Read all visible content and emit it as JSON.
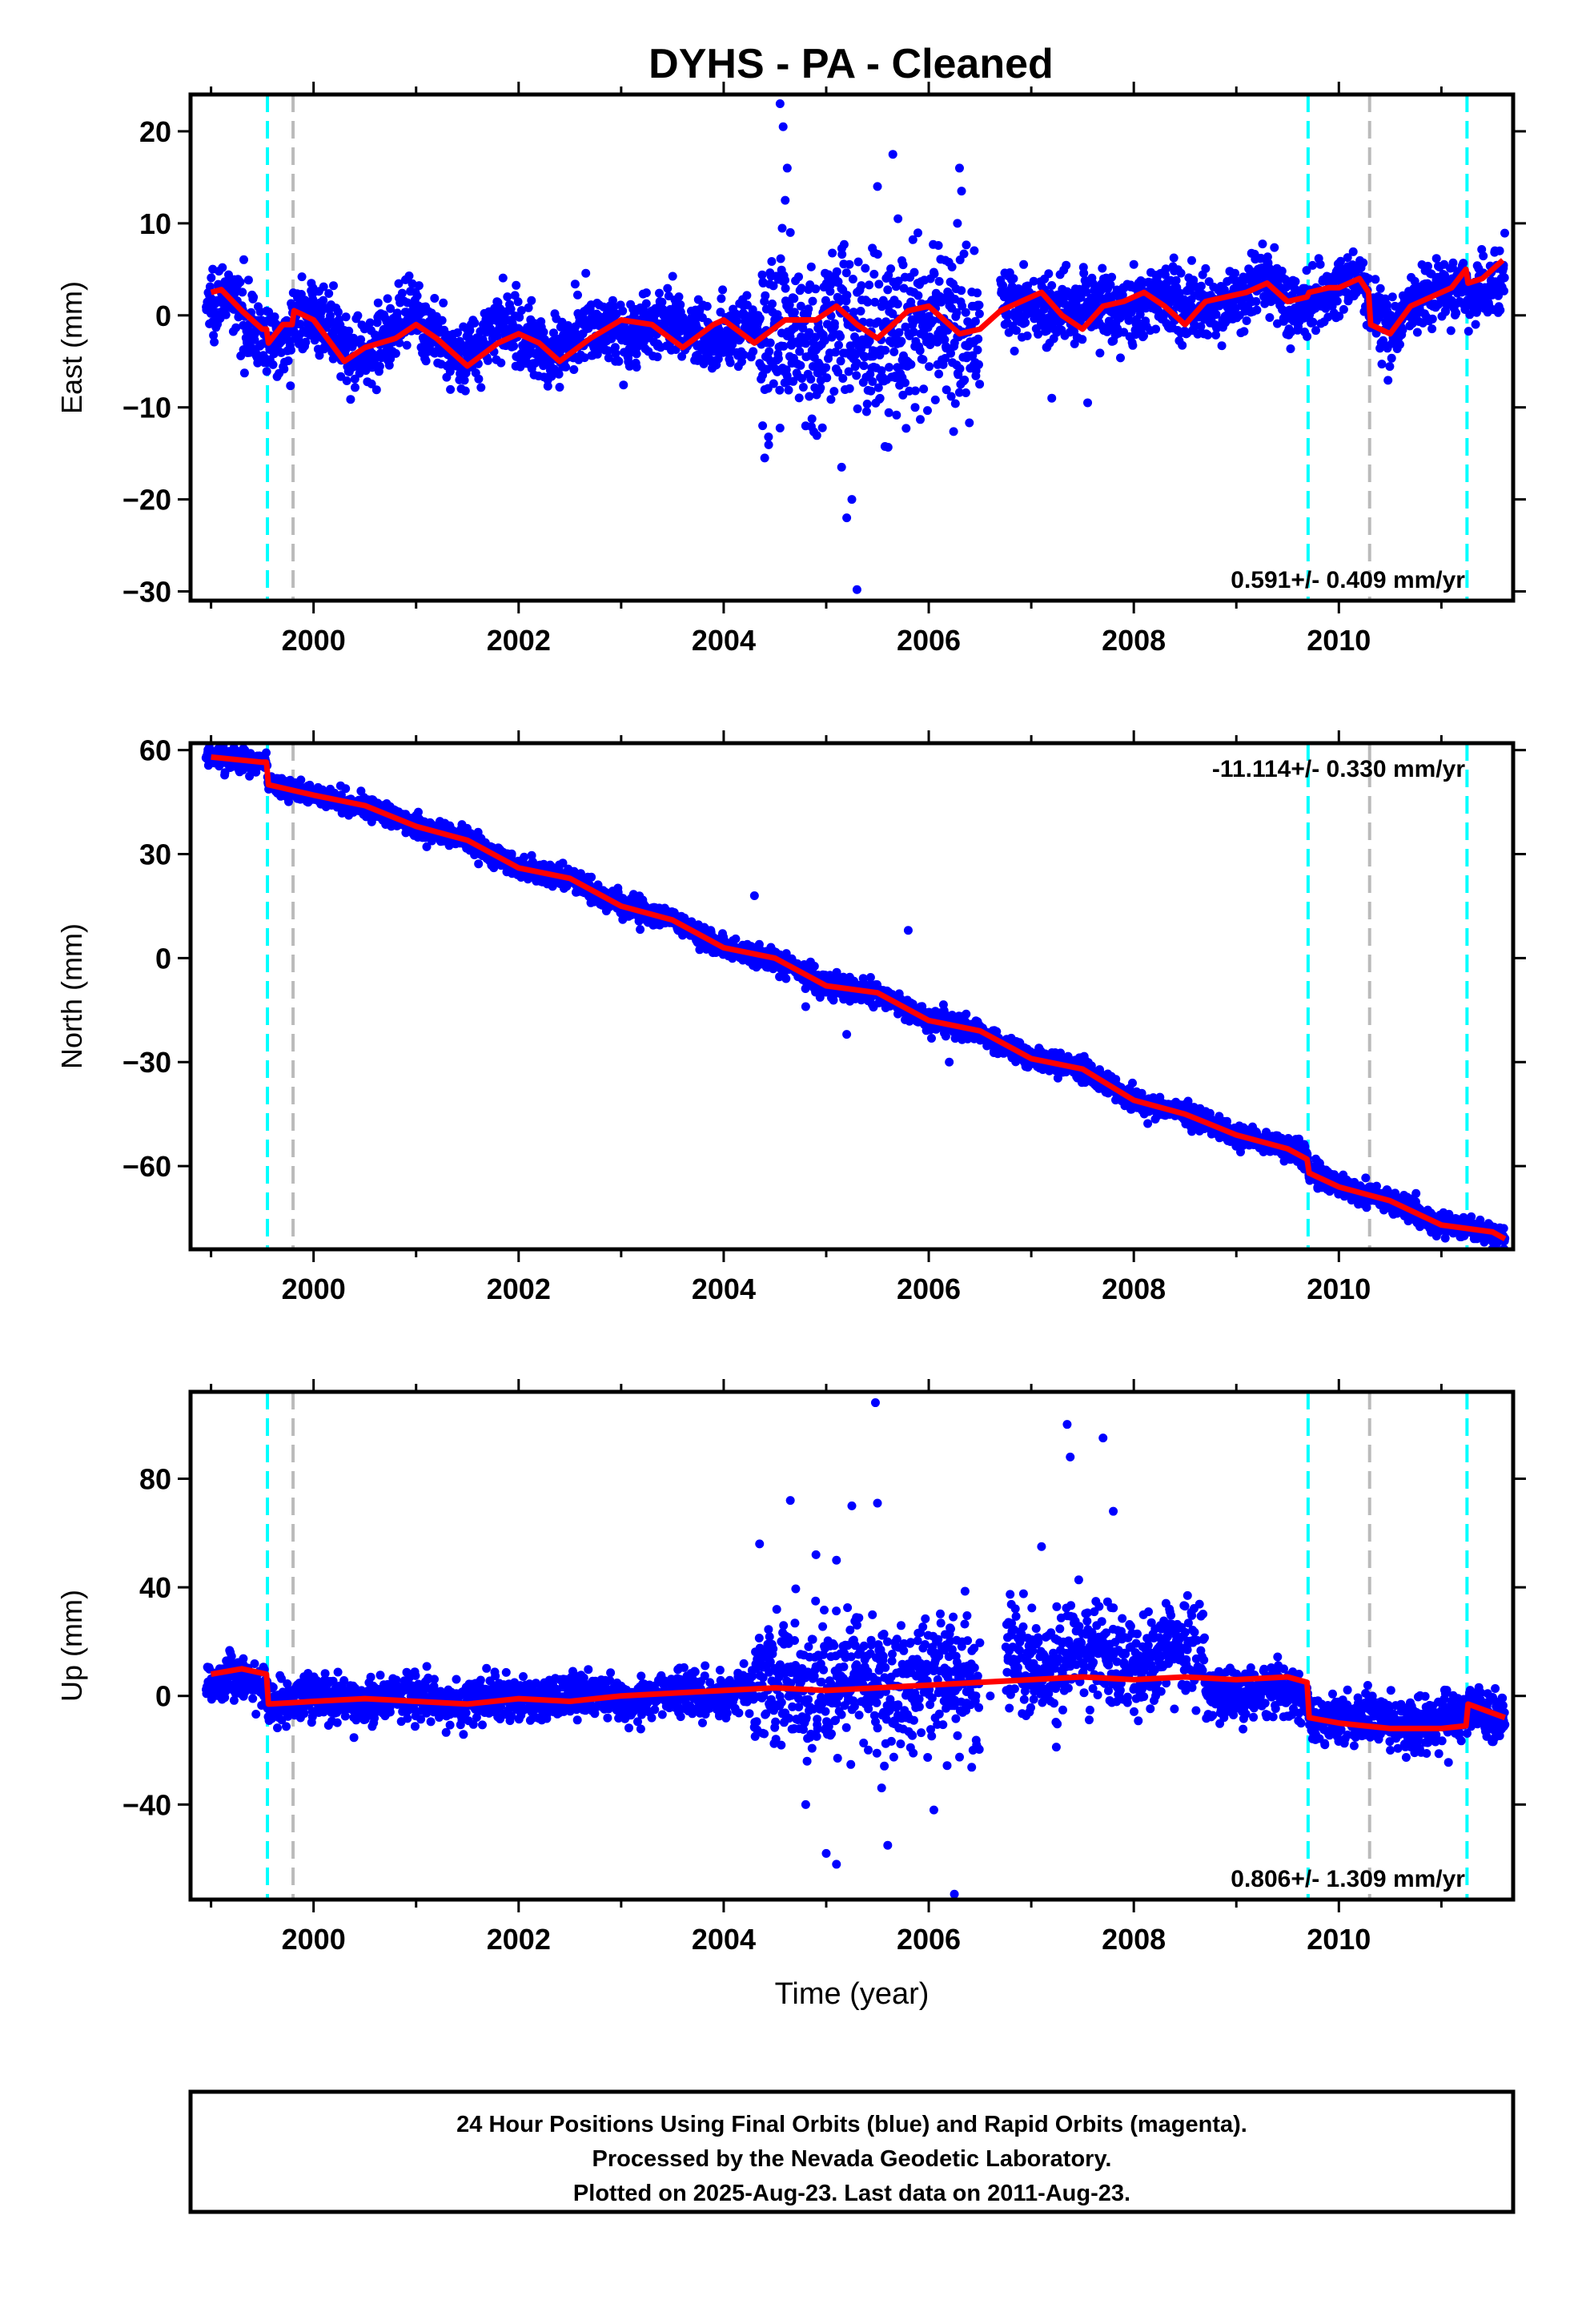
{
  "title": "DYHS  - PA - Cleaned",
  "footer": {
    "lines": [
      "24 Hour Positions Using Final Orbits (blue) and Rapid Orbits (magenta).",
      "Processed by the Nevada Geodetic Laboratory.",
      "Plotted on 2025-Aug-23. Last data on 2011-Aug-23."
    ]
  },
  "colors": {
    "points": "#0000ff",
    "model": "#ff0000",
    "equipment_change": "#00ffff",
    "other_event": "#bbbbbb"
  },
  "chart_data": [
    {
      "type": "scatter",
      "component": "East",
      "ylabel": "East (mm)",
      "ylim": [
        -31,
        24
      ],
      "yticks": [
        -30,
        -20,
        -10,
        0,
        10,
        20
      ],
      "xlim": [
        1998.8,
        2011.7
      ],
      "xticks": [
        2000,
        2002,
        2004,
        2006,
        2008,
        2010
      ],
      "xticklabels": [
        "2000",
        "2002",
        "2004",
        "2006",
        "2008",
        "2010"
      ],
      "rate_label": "0.591+/- 0.409 mm/yr",
      "rate_position": "bottom-right",
      "event_lines": {
        "cyan": [
          1999.55,
          2009.7,
          2011.25
        ],
        "gray": [
          1999.8,
          2010.3
        ]
      },
      "model": {
        "x": [
          1999.0,
          1999.1,
          1999.3,
          1999.5,
          1999.54,
          1999.56,
          1999.7,
          1999.79,
          1999.81,
          2000.0,
          2000.3,
          2000.5,
          2000.8,
          2001.0,
          2001.2,
          2001.5,
          2001.8,
          2002.0,
          2002.2,
          2002.4,
          2002.7,
          2003.0,
          2003.3,
          2003.6,
          2003.9,
          2004.0,
          2004.3,
          2004.6,
          2004.9,
          2005.1,
          2005.3,
          2005.5,
          2005.8,
          2006.0,
          2006.3,
          2006.5,
          2006.7,
          2006.9,
          2007.1,
          2007.3,
          2007.5,
          2007.7,
          2007.9,
          2008.1,
          2008.3,
          2008.5,
          2008.7,
          2008.9,
          2009.1,
          2009.3,
          2009.5,
          2009.69,
          2009.71,
          2009.9,
          2010.0,
          2010.2,
          2010.29,
          2010.31,
          2010.5,
          2010.7,
          2010.9,
          2011.1,
          2011.24,
          2011.26,
          2011.4,
          2011.6
        ],
        "y": [
          2.5,
          2.8,
          0.5,
          -1.5,
          -1.5,
          -3.0,
          -1.0,
          -1.0,
          0.5,
          -0.5,
          -5.0,
          -3.5,
          -2.5,
          -1.0,
          -2.5,
          -5.5,
          -3.0,
          -2.0,
          -3.0,
          -5.0,
          -2.5,
          -0.5,
          -1.0,
          -3.5,
          -1.0,
          -0.5,
          -3.0,
          -0.5,
          -0.5,
          1.0,
          -1.0,
          -2.5,
          0.5,
          1.0,
          -2.0,
          -1.5,
          0.5,
          1.5,
          2.5,
          0.0,
          -1.5,
          1.0,
          1.5,
          2.5,
          1.0,
          -1.0,
          1.5,
          2.0,
          2.5,
          3.5,
          1.5,
          2.0,
          2.5,
          3.0,
          3.0,
          4.0,
          2.5,
          -1.0,
          -2.0,
          1.0,
          2.0,
          3.0,
          5.0,
          3.5,
          4.0,
          6.0
        ]
      },
      "trend_segments": [
        {
          "start": 1998.95,
          "end": 2004.35,
          "mean": -1.5,
          "amp": 3.0,
          "scatter": 1.8
        },
        {
          "start": 2004.35,
          "end": 2006.5,
          "mean": -4.0,
          "amp": 2.5,
          "scatter": 4.5
        },
        {
          "start": 2006.7,
          "end": 2011.62,
          "mean": 1.5,
          "amp": 2.5,
          "scatter": 1.8
        }
      ],
      "outlier_points": [
        {
          "x": 2004.55,
          "y": 23.0
        },
        {
          "x": 2004.58,
          "y": 20.5
        },
        {
          "x": 2004.62,
          "y": 16.0
        },
        {
          "x": 2004.6,
          "y": 12.5
        },
        {
          "x": 2004.65,
          "y": 9.0
        },
        {
          "x": 2004.4,
          "y": -15.5
        },
        {
          "x": 2004.38,
          "y": -12.0
        },
        {
          "x": 2005.2,
          "y": -22.0
        },
        {
          "x": 2005.25,
          "y": -20.0
        },
        {
          "x": 2005.15,
          "y": -16.5
        },
        {
          "x": 2005.3,
          "y": -29.8
        },
        {
          "x": 2005.65,
          "y": 17.5
        },
        {
          "x": 2005.5,
          "y": 14.0
        },
        {
          "x": 2005.7,
          "y": 10.5
        },
        {
          "x": 2005.75,
          "y": 5.5
        },
        {
          "x": 2006.3,
          "y": 16.0
        },
        {
          "x": 2006.32,
          "y": 13.5
        },
        {
          "x": 2006.28,
          "y": 10.0
        },
        {
          "x": 2005.95,
          "y": -8.0
        },
        {
          "x": 2007.2,
          "y": -9.0
        },
        {
          "x": 2007.55,
          "y": -9.5
        }
      ]
    },
    {
      "type": "scatter",
      "component": "North",
      "ylabel": "North (mm)",
      "ylim": [
        -84,
        62
      ],
      "yticks": [
        -60,
        -30,
        0,
        30,
        60
      ],
      "xlim": [
        1998.8,
        2011.7
      ],
      "xticks": [
        2000,
        2002,
        2004,
        2006,
        2008,
        2010
      ],
      "xticklabels": [
        "2000",
        "2002",
        "2004",
        "2006",
        "2008",
        "2010"
      ],
      "rate_label": "-11.114+/- 0.330 mm/yr",
      "rate_position": "top-right",
      "event_lines": {
        "cyan": [
          1999.55,
          2009.7,
          2011.25
        ],
        "gray": [
          1999.8,
          2010.3
        ]
      },
      "model": {
        "x": [
          1999.0,
          1999.5,
          1999.54,
          1999.56,
          2000.0,
          2000.5,
          2001.0,
          2001.5,
          2002.0,
          2002.5,
          2003.0,
          2003.5,
          2004.0,
          2004.5,
          2005.0,
          2005.5,
          2006.0,
          2006.5,
          2007.0,
          2007.5,
          2008.0,
          2008.5,
          2009.0,
          2009.5,
          2009.69,
          2009.71,
          2010.0,
          2010.5,
          2011.0,
          2011.5,
          2011.62
        ],
        "y": [
          58,
          56.5,
          56.5,
          50,
          47,
          44,
          38,
          34,
          26,
          23,
          15,
          11,
          3,
          0,
          -8,
          -10,
          -18,
          -21,
          -29,
          -32,
          -41,
          -45,
          -51,
          -55,
          -58,
          -62,
          -66,
          -70,
          -77,
          -79,
          -81
        ]
      },
      "trend_segments": [
        {
          "start": 1998.95,
          "end": 2011.62,
          "mean": 0.0,
          "amp": 1.5,
          "scatter": 1.6
        }
      ],
      "outlier_points": [
        {
          "x": 2004.3,
          "y": 18.0
        },
        {
          "x": 2005.8,
          "y": 8.0
        },
        {
          "x": 2005.2,
          "y": -22.0
        },
        {
          "x": 2006.2,
          "y": -30.0
        },
        {
          "x": 2004.8,
          "y": -14.0
        }
      ]
    },
    {
      "type": "scatter",
      "component": "Up",
      "ylabel": "Up (mm)",
      "ylim": [
        -75,
        112
      ],
      "yticks": [
        -40,
        0,
        40,
        80
      ],
      "xlim": [
        1998.8,
        2011.7
      ],
      "xticks": [
        2000,
        2002,
        2004,
        2006,
        2008,
        2010
      ],
      "xticklabels": [
        "2000",
        "2002",
        "2004",
        "2006",
        "2008",
        "2010"
      ],
      "xlabel": "Time (year)",
      "rate_label": "0.806+/- 1.309 mm/yr",
      "rate_position": "bottom-right",
      "event_lines": {
        "cyan": [
          1999.55,
          2009.7,
          2011.25
        ],
        "gray": [
          1999.8,
          2010.3
        ]
      },
      "model": {
        "x": [
          1999.0,
          1999.3,
          1999.54,
          1999.56,
          2000.0,
          2000.5,
          2001.0,
          2001.5,
          2002.0,
          2002.5,
          2003.0,
          2003.5,
          2004.0,
          2004.5,
          2005.0,
          2005.5,
          2006.0,
          2006.5,
          2007.0,
          2007.5,
          2008.0,
          2008.5,
          2009.0,
          2009.5,
          2009.69,
          2009.71,
          2010.0,
          2010.5,
          2011.0,
          2011.24,
          2011.26,
          2011.62
        ],
        "y": [
          8,
          10,
          8,
          -3,
          -2,
          -1,
          -2,
          -3,
          -1,
          -2,
          0,
          1,
          2,
          3,
          2,
          3,
          4,
          5,
          6,
          7,
          6,
          7,
          6,
          7,
          5,
          -8,
          -10,
          -12,
          -12,
          -11,
          -3,
          -8
        ]
      },
      "trend_segments": [
        {
          "start": 1998.95,
          "end": 2004.3,
          "mean": 0.0,
          "amp": 4.0,
          "scatter": 4.0
        },
        {
          "start": 2004.3,
          "end": 2006.5,
          "mean": 5.0,
          "amp": 8.0,
          "scatter": 12.0
        },
        {
          "start": 2006.75,
          "end": 2008.7,
          "mean": 25.0,
          "amp": 10.0,
          "scatter": 9.0
        },
        {
          "start": 2008.7,
          "end": 2011.62,
          "mean": -6.0,
          "amp": 4.0,
          "scatter": 4.5
        }
      ],
      "outlier_points": [
        {
          "x": 2005.48,
          "y": 108.0
        },
        {
          "x": 2007.35,
          "y": 100.0
        },
        {
          "x": 2007.7,
          "y": 95.0
        },
        {
          "x": 2007.38,
          "y": 88.0
        },
        {
          "x": 2005.5,
          "y": 71.0
        },
        {
          "x": 2005.25,
          "y": 70.0
        },
        {
          "x": 2004.65,
          "y": 72.0
        },
        {
          "x": 2004.35,
          "y": 56.0
        },
        {
          "x": 2005.1,
          "y": 50.0
        },
        {
          "x": 2004.9,
          "y": 52.0
        },
        {
          "x": 2005.0,
          "y": -58.0
        },
        {
          "x": 2005.1,
          "y": -62.0
        },
        {
          "x": 2005.6,
          "y": -55.0
        },
        {
          "x": 2006.25,
          "y": -73.0
        },
        {
          "x": 2006.05,
          "y": -42.0
        },
        {
          "x": 2007.1,
          "y": 55.0
        },
        {
          "x": 2007.8,
          "y": 68.0
        },
        {
          "x": 2004.8,
          "y": -40.0
        },
        {
          "x": 2006.6,
          "y": 0.0
        }
      ]
    }
  ]
}
